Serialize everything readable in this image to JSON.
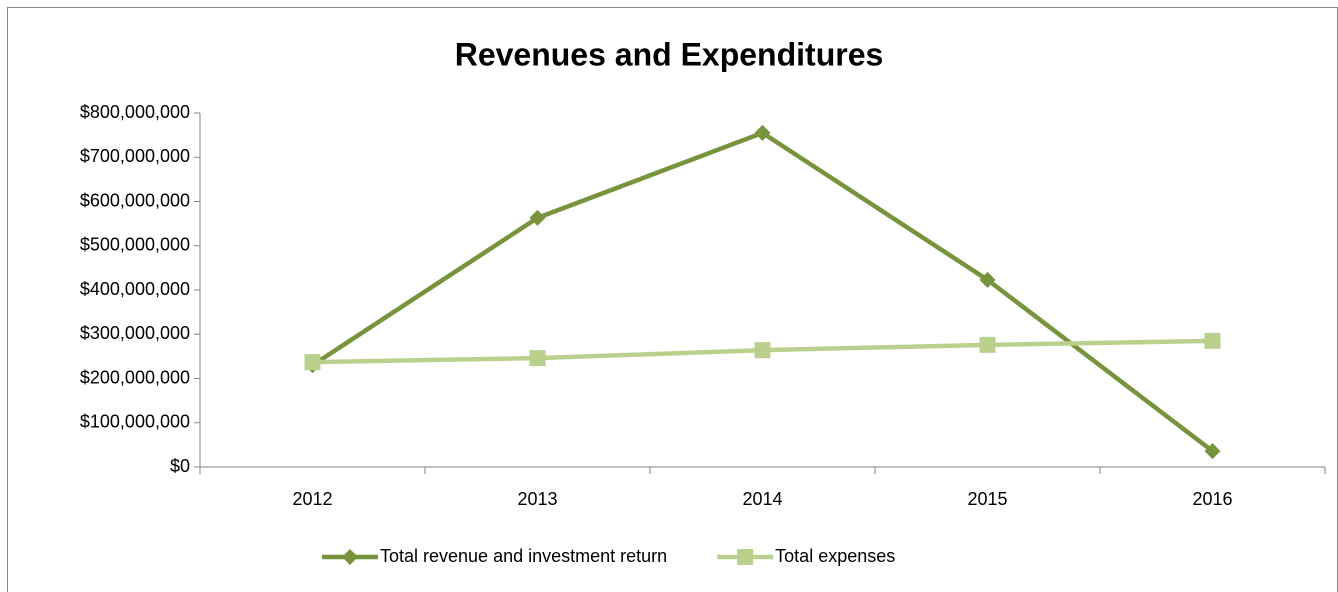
{
  "chart_data": {
    "type": "line",
    "title": "Revenues and Expenditures",
    "categories": [
      "2012",
      "2013",
      "2014",
      "2015",
      "2016"
    ],
    "series": [
      {
        "name": "Total revenue and investment return",
        "color": "#77933c",
        "marker": "diamond",
        "values": [
          230000000,
          563000000,
          755000000,
          423000000,
          36000000
        ]
      },
      {
        "name": "Total expenses",
        "color": "#b9d18c",
        "marker": "square",
        "values": [
          237000000,
          246000000,
          264000000,
          276000000,
          285000000
        ]
      }
    ],
    "ylim": [
      0,
      800000000
    ],
    "yticks": [
      {
        "value": 0,
        "label": "$0"
      },
      {
        "value": 100000000,
        "label": "$100,000,000"
      },
      {
        "value": 200000000,
        "label": "$200,000,000"
      },
      {
        "value": 300000000,
        "label": "$300,000,000"
      },
      {
        "value": 400000000,
        "label": "$400,000,000"
      },
      {
        "value": 500000000,
        "label": "$500,000,000"
      },
      {
        "value": 600000000,
        "label": "$600,000,000"
      },
      {
        "value": 700000000,
        "label": "$700,000,000"
      },
      {
        "value": 800000000,
        "label": "$800,000,000"
      }
    ],
    "grid": false,
    "legend": "bottom"
  }
}
